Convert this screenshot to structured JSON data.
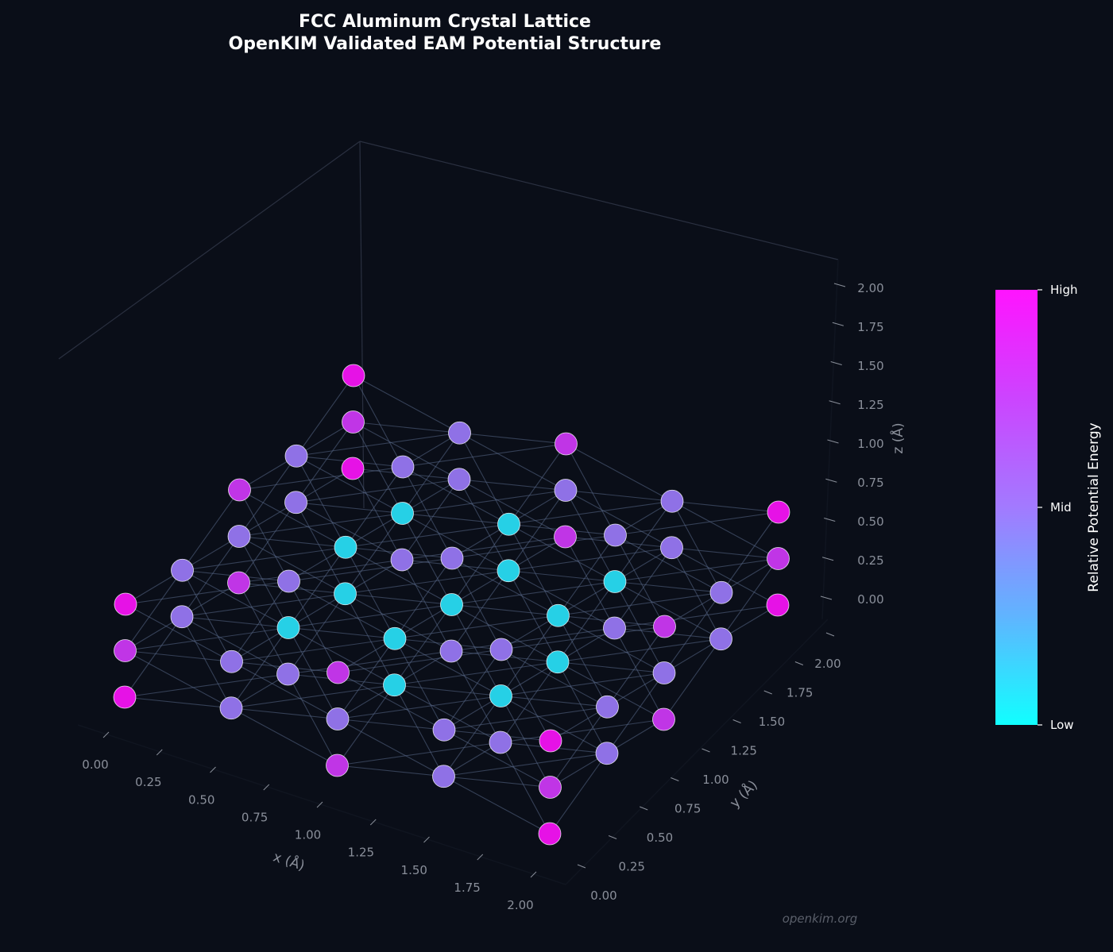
{
  "chart_data": {
    "type": "scatter3d",
    "title": "FCC Aluminum Crystal Lattice",
    "subtitle": "OpenKIM Validated EAM Potential Structure",
    "xlabel": "x (Å)",
    "ylabel": "y (Å)",
    "zlabel": "z (Å)",
    "xlim": [
      0,
      2
    ],
    "ylim": [
      0,
      2
    ],
    "zlim": [
      0,
      2
    ],
    "x_ticks": [
      "0.00",
      "0.25",
      "0.50",
      "0.75",
      "1.00",
      "1.25",
      "1.50",
      "1.75",
      "2.00"
    ],
    "y_ticks": [
      "0.00",
      "0.25",
      "0.50",
      "0.75",
      "1.00",
      "1.25",
      "1.50",
      "1.75",
      "2.00"
    ],
    "z_ticks": [
      "0.00",
      "0.25",
      "0.50",
      "0.75",
      "1.00",
      "1.25",
      "1.50",
      "1.75",
      "2.00"
    ],
    "grid": false,
    "lattice_cells": 2,
    "bond_length": 0.7071,
    "colorbar": {
      "label": "Relative Potential Energy",
      "ticks": [
        "Low",
        "Mid",
        "High"
      ],
      "colors": [
        "#11ffff",
        "#60b4ff",
        "#a27aff",
        "#cc44ff",
        "#ff14ff"
      ]
    },
    "energy_encoding": "coordination-based",
    "watermark": "openkim.org",
    "colors": {
      "background": "#0a0e18",
      "bond": "#5a6a8a",
      "axis_line": "#101520",
      "pane_edge": "#2a3040"
    }
  }
}
